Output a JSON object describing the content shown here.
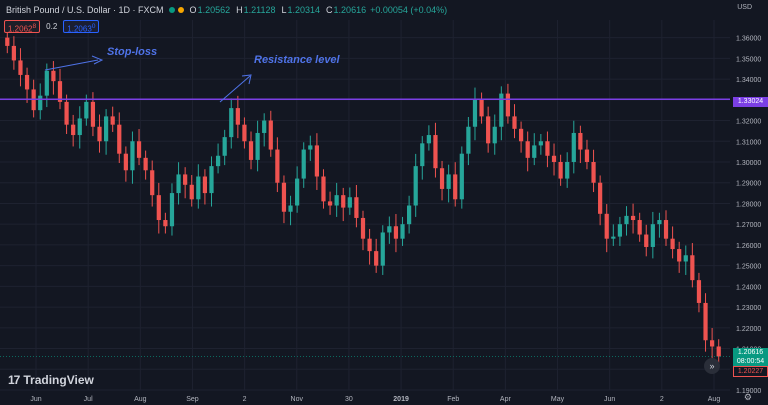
{
  "header": {
    "symbol": "British Pound / U.S. Dollar · 1D · FXCM",
    "open_label": "O",
    "open": "1.20562",
    "high_label": "H",
    "high": "1.21128",
    "low_label": "L",
    "low": "1.20314",
    "close_label": "C",
    "close": "1.20616",
    "change": "+0.00054 (+0.04%)"
  },
  "trade": {
    "sell_price": "1.2062",
    "sell_sup": "8",
    "spread": "0.2",
    "buy_price": "1.2063",
    "buy_sup": "0"
  },
  "currency": "USD",
  "annotations": {
    "stop_loss": "Stop-loss",
    "resistance": "Resistance level"
  },
  "price_tags": {
    "resistance": "1.33024",
    "last": "1.20616",
    "countdown": "08:00:54",
    "ask": "1.20227"
  },
  "logo": {
    "mark": "17",
    "name": "TradingView"
  },
  "nav_icon": "»",
  "colors": {
    "background": "#131722",
    "up": "#26a69a",
    "down": "#ef5350",
    "resistance_line": "#7b3fe4",
    "annotation": "#4f73e8"
  },
  "chart_data": {
    "type": "candlestick",
    "y_ticks": [
      "1.36000",
      "1.35000",
      "1.34000",
      "1.33000",
      "1.32000",
      "1.31000",
      "1.30000",
      "1.29000",
      "1.28000",
      "1.27000",
      "1.26000",
      "1.25000",
      "1.24000",
      "1.23000",
      "1.22000",
      "1.21000",
      "1.20000",
      "1.19000"
    ],
    "ylim": [
      1.19,
      1.3685
    ],
    "x_ticks": [
      "Jun",
      "Jul",
      "Aug",
      "Sep",
      "2",
      "Nov",
      "30",
      "2019",
      "Feb",
      "Apr",
      "May",
      "Jun",
      "2",
      "Aug"
    ],
    "x_tick_bold": "2019",
    "resistance_level": 1.33024,
    "grid": true,
    "closes": [
      1.356,
      1.349,
      1.342,
      1.335,
      1.325,
      1.332,
      1.344,
      1.339,
      1.329,
      1.318,
      1.313,
      1.321,
      1.329,
      1.317,
      1.31,
      1.322,
      1.318,
      1.304,
      1.296,
      1.31,
      1.302,
      1.296,
      1.284,
      1.272,
      1.269,
      1.285,
      1.294,
      1.289,
      1.282,
      1.293,
      1.285,
      1.298,
      1.303,
      1.312,
      1.326,
      1.318,
      1.31,
      1.301,
      1.314,
      1.32,
      1.306,
      1.29,
      1.276,
      1.279,
      1.292,
      1.306,
      1.308,
      1.293,
      1.281,
      1.279,
      1.284,
      1.278,
      1.283,
      1.273,
      1.263,
      1.257,
      1.25,
      1.266,
      1.269,
      1.263,
      1.27,
      1.279,
      1.298,
      1.309,
      1.313,
      1.297,
      1.287,
      1.294,
      1.282,
      1.304,
      1.317,
      1.33,
      1.322,
      1.309,
      1.317,
      1.333,
      1.322,
      1.316,
      1.31,
      1.302,
      1.308,
      1.31,
      1.303,
      1.3,
      1.292,
      1.3,
      1.314,
      1.306,
      1.3,
      1.29,
      1.275,
      1.263,
      1.264,
      1.27,
      1.274,
      1.272,
      1.265,
      1.259,
      1.27,
      1.272,
      1.263,
      1.258,
      1.252,
      1.255,
      1.243,
      1.232,
      1.214,
      1.211,
      1.2062
    ]
  }
}
